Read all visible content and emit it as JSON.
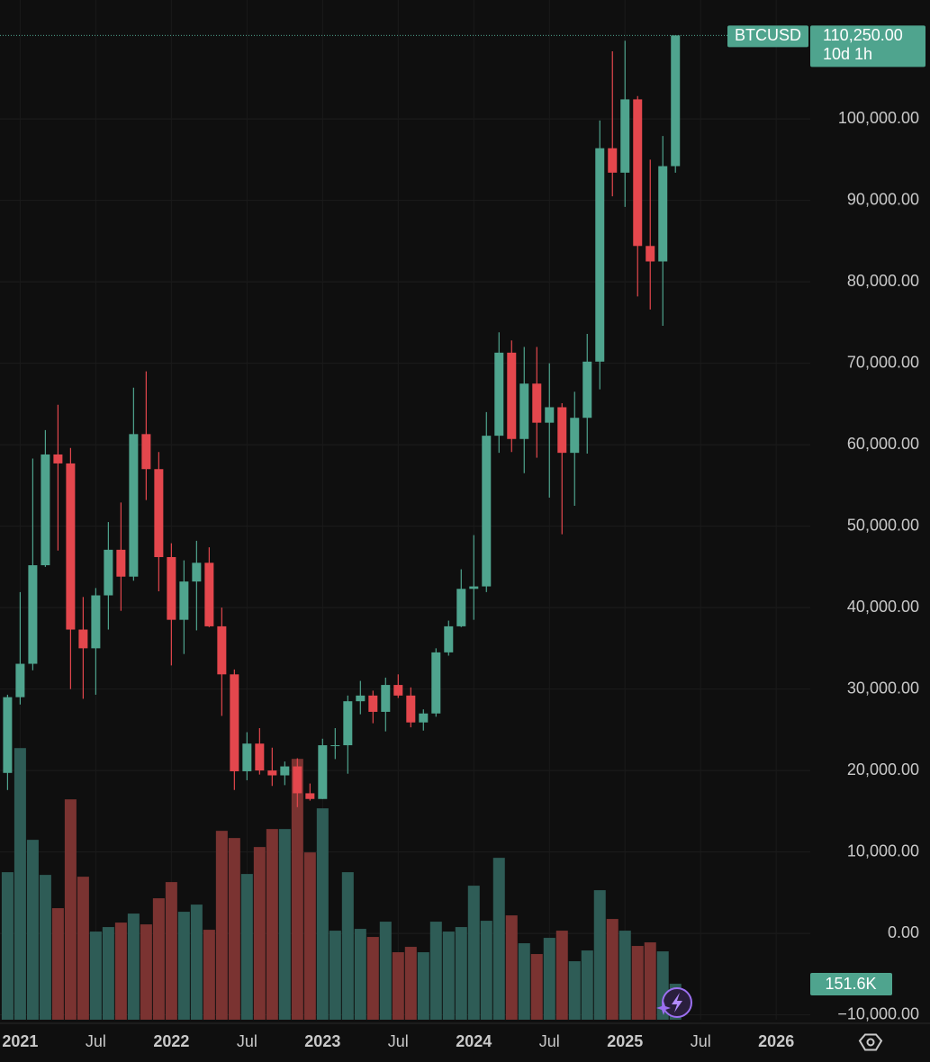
{
  "chart_data": {
    "type": "candlestick",
    "symbol": "BTCUSD",
    "countdown": "10d 1h",
    "last_price": {
      "value": 110250,
      "label": "110,250.00"
    },
    "last_volume": {
      "value": 151600,
      "label": "151.6K"
    },
    "up_color": "#4fa48e",
    "down_color": "#e4474d",
    "volume_up_color": "#2e5c56",
    "volume_down_color": "#7a3331",
    "open": [
      19700,
      29000,
      33100,
      45200,
      58800,
      57700,
      37300,
      35000,
      41500,
      47100,
      43800,
      61300,
      57000,
      46200,
      38500,
      43200,
      45500,
      37700,
      31800,
      19900,
      23300,
      20000,
      19400,
      20500,
      17200,
      16500,
      23100,
      23100,
      28500,
      29200,
      27200,
      30500,
      29200,
      25900,
      27000,
      34500,
      37700,
      42300,
      42600,
      61100,
      71300,
      60700,
      67500,
      62700,
      64600,
      59000,
      63300,
      70200,
      96400,
      93400,
      102400,
      84400,
      82500,
      94200
    ],
    "high": [
      29300,
      41900,
      58300,
      61800,
      64900,
      59600,
      41300,
      42400,
      50500,
      52900,
      67000,
      69000,
      59100,
      47900,
      45800,
      48200,
      47400,
      40000,
      32400,
      24700,
      25200,
      22800,
      21100,
      21500,
      18400,
      23900,
      25200,
      29200,
      31000,
      29800,
      31400,
      31800,
      30200,
      27500,
      35000,
      38400,
      44700,
      48900,
      64000,
      73800,
      72800,
      72000,
      72000,
      70000,
      65100,
      66500,
      73600,
      99800,
      108300,
      109600,
      102800,
      95000,
      97900,
      110250
    ],
    "low": [
      17600,
      28100,
      32300,
      45000,
      47000,
      30000,
      28800,
      29300,
      37300,
      39600,
      43300,
      53200,
      42000,
      32900,
      34300,
      37200,
      37600,
      26700,
      17600,
      18800,
      19500,
      18100,
      18200,
      15500,
      16300,
      16500,
      21400,
      19600,
      26900,
      25800,
      24800,
      28900,
      25300,
      24900,
      26600,
      34100,
      37600,
      38500,
      41900,
      59000,
      59100,
      56500,
      58400,
      53500,
      49000,
      52500,
      58900,
      66800,
      90500,
      89200,
      78200,
      76600,
      74600,
      93400
    ],
    "close": [
      29000,
      33100,
      45200,
      58800,
      57700,
      37300,
      35000,
      41500,
      47100,
      43800,
      61300,
      57000,
      46200,
      38500,
      43200,
      45500,
      37700,
      31800,
      19900,
      23300,
      20000,
      19400,
      20500,
      17200,
      16500,
      23100,
      23100,
      28500,
      29200,
      27200,
      30500,
      29200,
      25900,
      27000,
      34500,
      37700,
      42300,
      42600,
      61100,
      71300,
      60700,
      67500,
      62700,
      64600,
      59000,
      63300,
      70200,
      96400,
      93400,
      102400,
      84400,
      82500,
      94200,
      110250
    ],
    "volume": [
      621600,
      1144600,
      758000,
      610200,
      470000,
      928600,
      602600,
      371400,
      390400,
      409300,
      447200,
      401700,
      511700,
      579900,
      454800,
      485100,
      379000,
      795900,
      765600,
      614000,
      727700,
      803500,
      803500,
      1099100,
      704900,
      890700,
      375200,
      621600,
      382800,
      348700,
      413100,
      284300,
      307000,
      284300,
      413100,
      371400,
      390400,
      564700,
      416900,
      682200,
      439600,
      322200,
      276700,
      344900,
      375200,
      246400,
      291800,
      545800,
      424500,
      375200,
      310800,
      325900,
      288000,
      151600
    ],
    "volume_ylim": [
      0,
      1200000
    ],
    "ylim": [
      -10600,
      114600
    ],
    "yticks": [
      {
        "value": -10000,
        "label": "−10,000.00"
      },
      {
        "value": 0,
        "label": "0.00"
      },
      {
        "value": 10000,
        "label": "10,000.00"
      },
      {
        "value": 20000,
        "label": "20,000.00"
      },
      {
        "value": 30000,
        "label": "30,000.00"
      },
      {
        "value": 40000,
        "label": "40,000.00"
      },
      {
        "value": 50000,
        "label": "50,000.00"
      },
      {
        "value": 60000,
        "label": "60,000.00"
      },
      {
        "value": 70000,
        "label": "70,000.00"
      },
      {
        "value": 80000,
        "label": "80,000.00"
      },
      {
        "value": 90000,
        "label": "90,000.00"
      },
      {
        "value": 100000,
        "label": "100,000.00"
      }
    ],
    "xlim": [
      -0.6,
      63.7
    ],
    "xticks": [
      {
        "value": 1,
        "label": "2021"
      },
      {
        "value": 7,
        "label": "Jul"
      },
      {
        "value": 13,
        "label": "2022"
      },
      {
        "value": 19,
        "label": "Jul"
      },
      {
        "value": 25,
        "label": "2023"
      },
      {
        "value": 31,
        "label": "Jul"
      },
      {
        "value": 37,
        "label": "2024"
      },
      {
        "value": 43,
        "label": "Jul"
      },
      {
        "value": 49,
        "label": "2025"
      },
      {
        "value": 55,
        "label": "Jul"
      },
      {
        "value": 61,
        "label": "2026"
      }
    ],
    "grid": true
  }
}
